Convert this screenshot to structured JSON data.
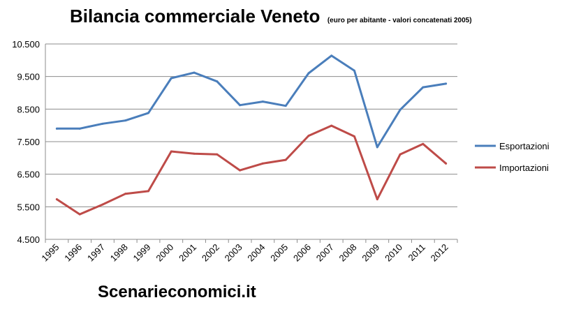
{
  "chart_data": {
    "type": "line",
    "title": "Bilancia commerciale Veneto",
    "subtitle": "(euro per abitante - valori concatenati 2005)",
    "xlabel": "",
    "ylabel": "",
    "categories": [
      "1995",
      "1996",
      "1997",
      "1998",
      "1999",
      "2000",
      "2001",
      "2002",
      "2003",
      "2004",
      "2005",
      "2006",
      "2007",
      "2008",
      "2009",
      "2010",
      "2011",
      "2012"
    ],
    "ylim": [
      4500,
      10500
    ],
    "yticks": [
      4500,
      5500,
      6500,
      7500,
      8500,
      9500,
      10500
    ],
    "ytick_labels": [
      "4.500",
      "5.500",
      "6.500",
      "7.500",
      "8.500",
      "9.500",
      "10.500"
    ],
    "grid": true,
    "legend_position": "right",
    "series": [
      {
        "name": "Esportazioni",
        "color": "#4a7ebb",
        "values": [
          7900,
          7900,
          8050,
          8150,
          8380,
          9450,
          9620,
          9350,
          8620,
          8730,
          8600,
          9600,
          10140,
          9680,
          7330,
          8480,
          9170,
          9280
        ]
      },
      {
        "name": "Importazioni",
        "color": "#be4b48",
        "values": [
          5730,
          5270,
          5570,
          5900,
          5980,
          7200,
          7130,
          7110,
          6620,
          6830,
          6940,
          7680,
          7990,
          7660,
          5730,
          7110,
          7430,
          6830
        ]
      }
    ]
  },
  "footer": {
    "brand": "Scenarieconomici.it"
  }
}
